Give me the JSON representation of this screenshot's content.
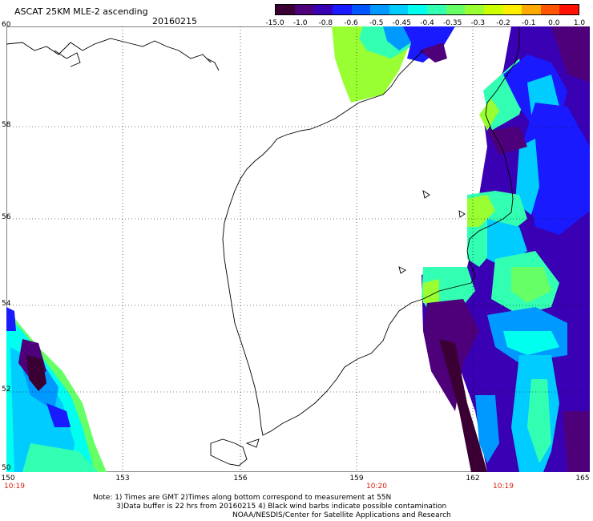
{
  "header": {
    "title": "ASCAT 25KM MLE-2 ascending",
    "date": "20160215"
  },
  "colorbar": {
    "colors": [
      "#3a0033",
      "#4d007a",
      "#3a00b3",
      "#1a1aff",
      "#0055ff",
      "#0099ff",
      "#00ccff",
      "#00ffee",
      "#33ffb3",
      "#66ff66",
      "#99ff33",
      "#ccff00",
      "#ffee00",
      "#ffaa00",
      "#ff5500",
      "#ff1100"
    ],
    "labels": [
      "-15.0",
      "-1.0",
      "-0.8",
      "-0.6",
      "-0.5",
      "-0.45",
      "-0.4",
      "-0.35",
      "-0.3",
      "-0.2",
      "-0.1",
      "0.0",
      "1.0"
    ]
  },
  "axes": {
    "lat_labels": [
      "60",
      "58",
      "56",
      "54",
      "52",
      "50"
    ],
    "lon_labels": [
      "150",
      "153",
      "156",
      "159",
      "162",
      "165"
    ],
    "time_labels": [
      "10:19",
      "10:20",
      "10:19"
    ]
  },
  "notes": {
    "line1": "Note: 1) Times are GMT 2)Times along bottom correspond to measurement at 55N",
    "line2": "3)Data buffer is 22 hrs from 20160215 4) Black wind barbs indicate possible contamination",
    "line3": "NOAA/NESDIS/Center for Satellite Applications and Research"
  }
}
